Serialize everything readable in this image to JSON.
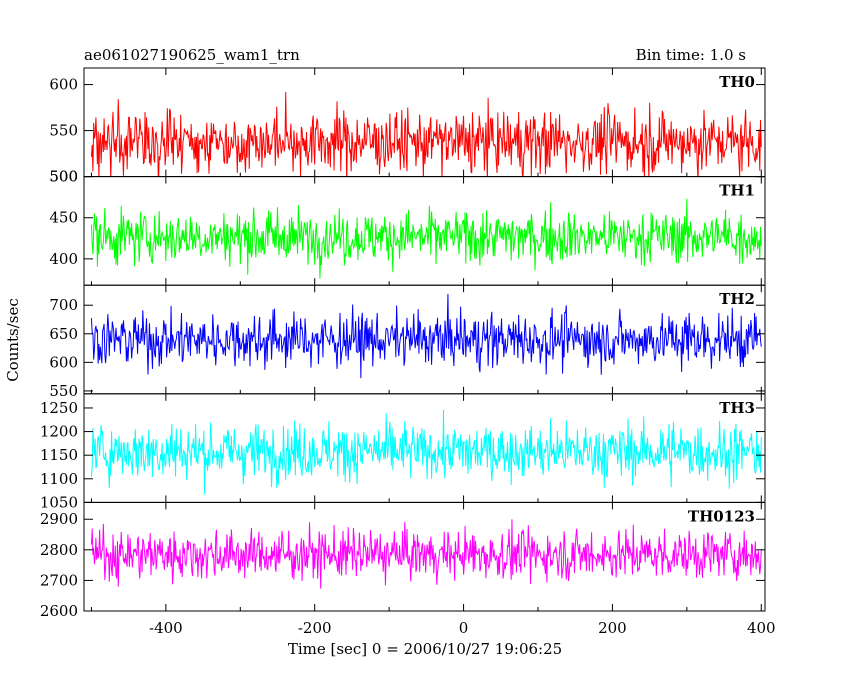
{
  "header": {
    "title": "ae061027190625_wam1_trn",
    "bin_time": "Bin time: 1.0 s"
  },
  "chart_data": {
    "type": "line",
    "ylabel": "Counts/sec",
    "xlabel": "Time [sec] 0 = 2006/10/27 19:06:25",
    "xlim": [
      -510,
      405
    ],
    "x_ticks": [
      -400,
      -200,
      0,
      200,
      400
    ],
    "x_range": [
      -500,
      400
    ],
    "bin_time_s": 1.0,
    "grid": false,
    "panels": [
      {
        "name": "TH0",
        "color": "#ff0000",
        "ylim": [
          500,
          618
        ],
        "y_ticks": [
          500,
          550,
          600
        ],
        "mean": 538,
        "amplitude": 32
      },
      {
        "name": "TH1",
        "color": "#00ff00",
        "ylim": [
          368,
          500
        ],
        "y_ticks": [
          400,
          450,
          500
        ],
        "mean": 427,
        "amplitude": 30
      },
      {
        "name": "TH2",
        "color": "#0000ff",
        "ylim": [
          545,
          735
        ],
        "y_ticks": [
          550,
          600,
          650,
          700
        ],
        "mean": 640,
        "amplitude": 44
      },
      {
        "name": "TH3",
        "color": "#00ffff",
        "ylim": [
          1050,
          1280
        ],
        "y_ticks": [
          1050,
          1100,
          1150,
          1200,
          1250
        ],
        "mean": 1158,
        "amplitude": 55
      },
      {
        "name": "TH0123",
        "color": "#ff00ff",
        "ylim": [
          2600,
          2955
        ],
        "y_ticks": [
          2600,
          2700,
          2800,
          2900
        ],
        "mean": 2785,
        "amplitude": 75
      }
    ]
  }
}
